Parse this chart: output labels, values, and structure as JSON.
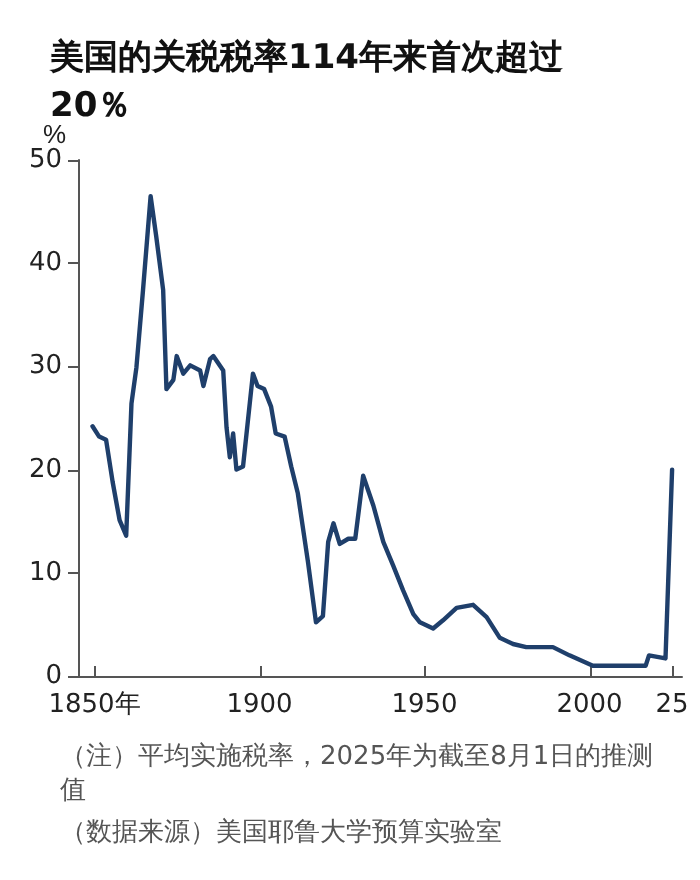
{
  "chart_data": {
    "type": "line",
    "title": "美国的关税税率114年来首次超过20％",
    "ylabel": "%",
    "x": [
      1849.4,
      1851.4,
      1853.5,
      1855.5,
      1857.6,
      1859.6,
      1861.2,
      1862.7,
      1864.7,
      1867,
      1868.7,
      1870.8,
      1871.8,
      1873.9,
      1874.9,
      1876.9,
      1879,
      1882,
      1883,
      1885,
      1886,
      1889,
      1890,
      1891,
      1892,
      1893,
      1895,
      1898,
      1899.4,
      1901.4,
      1903.5,
      1904.9,
      1907.6,
      1909.6,
      1911.6,
      1914.7,
      1917.1,
      1919.2,
      1920.8,
      1922.4,
      1924.3,
      1926.9,
      1929,
      1931.4,
      1934.5,
      1937.5,
      1940.5,
      1943.5,
      1946.6,
      1948.6,
      1952.6,
      1955.6,
      1959.7,
      1964.7,
      1968.8,
      1972.8,
      1976.8,
      1980.8,
      1988.9,
      1993.9,
      2001,
      2017,
      2018,
      2023,
      2025
    ],
    "series": [
      {
        "color": "#1f3f6b",
        "values": [
          24.2,
          23.2,
          22.9,
          18.8,
          15.1,
          13.6,
          26.4,
          29.9,
          37.4,
          46.5,
          42.6,
          37.4,
          27.8,
          28.7,
          31.0,
          29.3,
          30.1,
          29.6,
          28.1,
          30.7,
          31.0,
          29.6,
          24.1,
          21.2,
          23.5,
          20.0,
          20.3,
          29.3,
          28.1,
          27.8,
          26.1,
          23.5,
          23.2,
          20.3,
          17.7,
          11.0,
          5.2,
          5.8,
          13.0,
          14.8,
          12.8,
          13.3,
          13.3,
          19.4,
          16.5,
          13.0,
          10.7,
          8.3,
          6.0,
          5.2,
          4.6,
          5.4,
          6.6,
          6.9,
          5.7,
          3.7,
          3.1,
          2.8,
          2.8,
          2.0,
          1.0,
          1.0,
          2.0,
          1.7,
          20
        ]
      }
    ],
    "xlim": [
      1845,
      2028
    ],
    "xticks": [
      {
        "value": 1850,
        "label": "1850年"
      },
      1900,
      1950,
      2000,
      {
        "value": 2025,
        "label": "25"
      }
    ],
    "ylim": [
      0,
      50
    ],
    "yticks": [
      0,
      10,
      20,
      30,
      40,
      50
    ],
    "grid": false,
    "marker": "none",
    "line_style": "solid",
    "annotations": [
      "（注）平均实施税率，2025年为截至8月1日的推测值",
      "（数据来源）美国耶鲁大学预算实验室"
    ]
  }
}
